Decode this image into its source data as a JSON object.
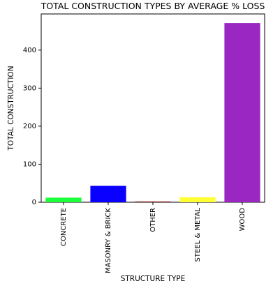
{
  "chart_data": {
    "type": "bar",
    "title": "TOTAL CONSTRUCTION TYPES BY AVERAGE % LOSS",
    "xlabel": "STRUCTURE TYPE",
    "ylabel": "TOTAL CONSTRUCTION",
    "categories": [
      "CONCRETE",
      "MASONRY & BRICK",
      "OTHER",
      "STEEL & METAL",
      "WOOD"
    ],
    "values": [
      12,
      43,
      2,
      13,
      471
    ],
    "colors": [
      "#1aff3a",
      "#0a00ff",
      "#8b1a1a",
      "#ffff33",
      "#9b27c2"
    ],
    "ylim": [
      0,
      495
    ],
    "yticks": [
      0,
      100,
      200,
      300,
      400
    ],
    "grid": false,
    "legend": "none"
  }
}
